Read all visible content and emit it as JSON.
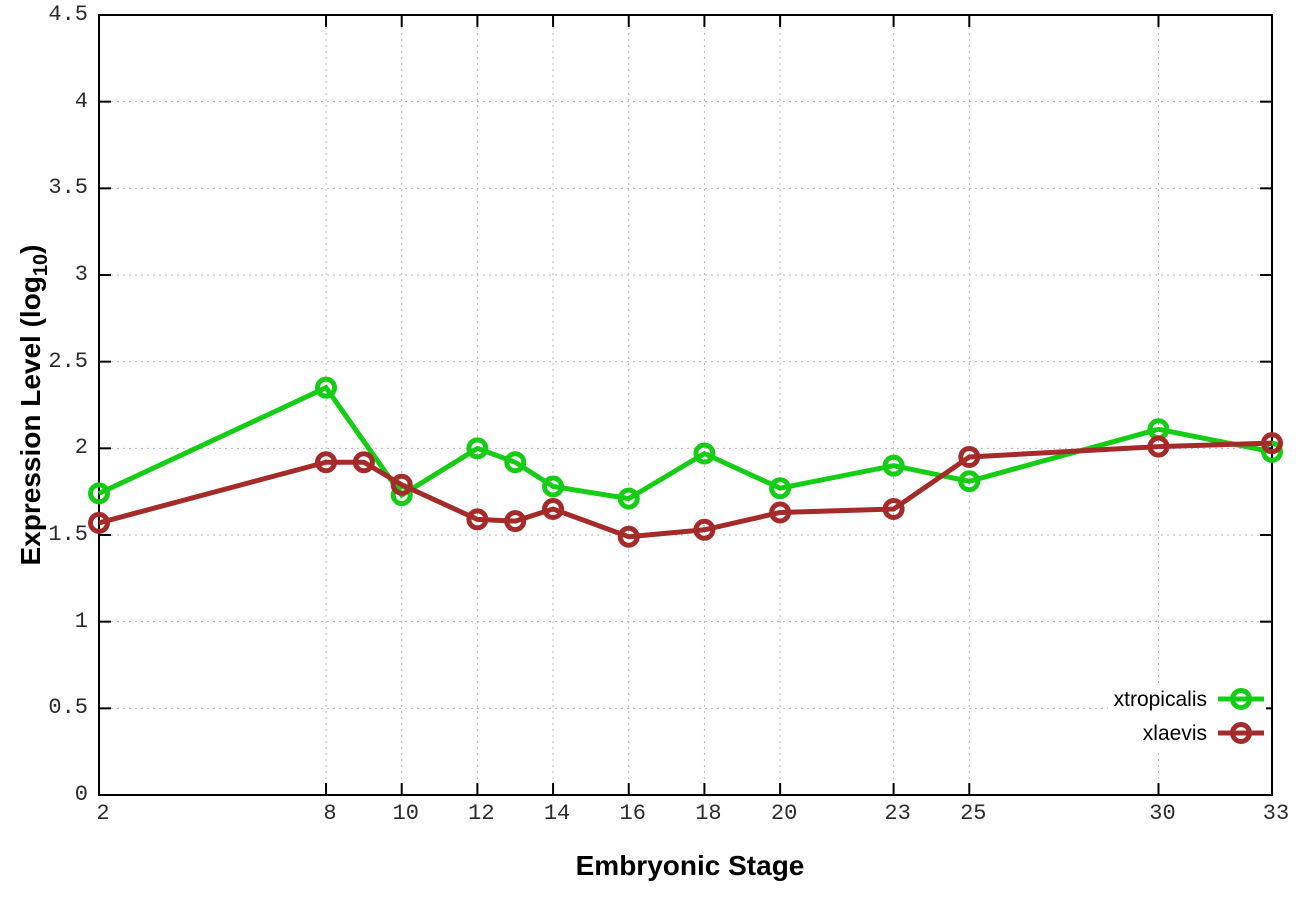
{
  "figure": {
    "xlabel": "Embryonic Stage",
    "ylabel_main": "Expression Level (log",
    "ylabel_sub": "10",
    "ylabel_close": ")"
  },
  "chart_data": {
    "type": "line",
    "title": "",
    "xlabel": "Embryonic Stage",
    "ylabel": "Expression Level (log10)",
    "xlim": [
      2,
      33
    ],
    "ylim": [
      0,
      4.5
    ],
    "grid": true,
    "legend_position": "bottom-right",
    "x_ticks": [
      2,
      8,
      10,
      12,
      14,
      16,
      18,
      20,
      23,
      25,
      30,
      33
    ],
    "x_tick_labels": [
      "2",
      "8",
      "10",
      "12",
      "14",
      "16",
      "18",
      "20",
      "23",
      "25",
      "30",
      "33"
    ],
    "y_ticks": [
      0,
      0.5,
      1,
      1.5,
      2,
      2.5,
      3,
      3.5,
      4,
      4.5
    ],
    "y_tick_labels": [
      "0",
      "0.5",
      "1",
      "1.5",
      "2",
      "2.5",
      "3",
      "3.5",
      "4",
      "4.5"
    ],
    "series": [
      {
        "name": "xtropicalis",
        "color": "#15cd15",
        "x": [
          2,
          8,
          10,
          12,
          13,
          14,
          16,
          18,
          20,
          23,
          25,
          30,
          33
        ],
        "y": [
          1.74,
          2.35,
          1.73,
          2.0,
          1.92,
          1.78,
          1.71,
          1.97,
          1.77,
          1.9,
          1.81,
          2.11,
          1.98
        ]
      },
      {
        "name": "xlaevis",
        "color": "#a52a2a",
        "x": [
          2,
          8,
          9,
          10,
          12,
          13,
          14,
          16,
          18,
          20,
          23,
          25,
          30,
          33
        ],
        "y": [
          1.57,
          1.92,
          1.92,
          1.79,
          1.59,
          1.58,
          1.65,
          1.49,
          1.53,
          1.63,
          1.65,
          1.95,
          2.01,
          2.03
        ]
      }
    ]
  },
  "style": {
    "grid_color": "#b8b8b8",
    "border_color": "#000000",
    "tick_label_color": "#2b2b2b"
  }
}
